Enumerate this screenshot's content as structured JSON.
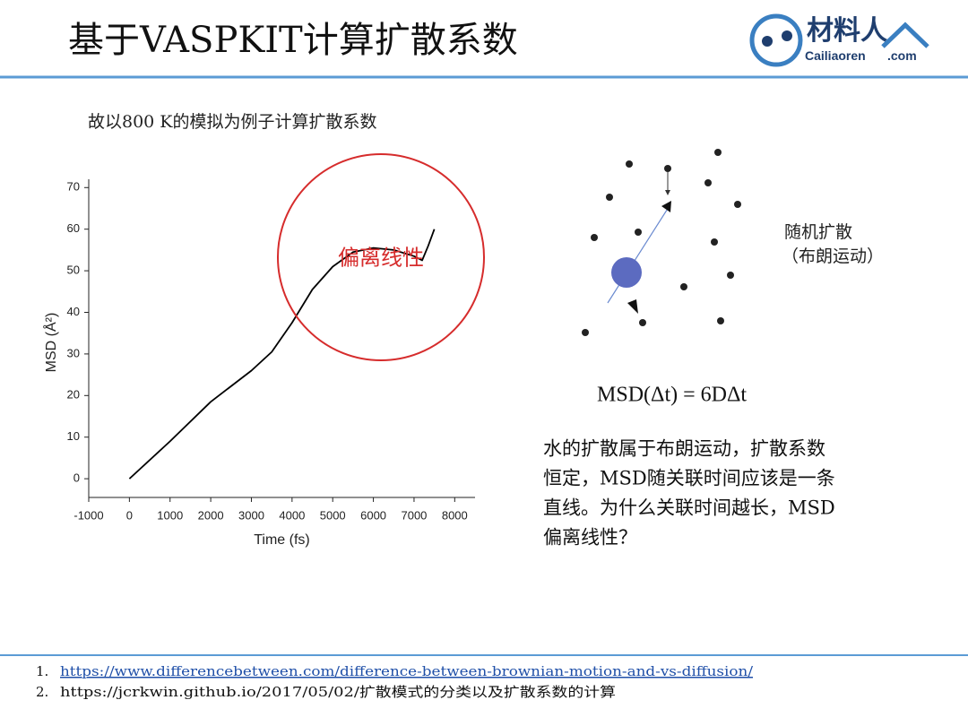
{
  "header": {
    "title": "基于VASPKIT计算扩散系数",
    "logo": {
      "name": "材料人",
      "site": "Cailiaoren",
      "domain": ".com"
    }
  },
  "subtitle": "故以800 K的模拟为例子计算扩散系数",
  "chart_data": {
    "type": "line",
    "x_label": "Time (fs)",
    "y_label": "MSD (Å²)",
    "x": [
      0,
      1000,
      2000,
      3000,
      3500,
      4000,
      4500,
      5000,
      5500,
      6000,
      6500,
      7000,
      7200,
      7350,
      7500
    ],
    "values": [
      0,
      9,
      18.5,
      26,
      30.5,
      37.5,
      45.5,
      51,
      54.5,
      55.5,
      55,
      53.5,
      52.5,
      56,
      60
    ],
    "color": "#000000",
    "xlim": [
      -1000,
      8500
    ],
    "xticks": [
      -1000,
      0,
      1000,
      2000,
      3000,
      4000,
      5000,
      6000,
      7000,
      8000
    ],
    "ylim": [
      -4.5,
      72
    ],
    "yticks": [
      0,
      10,
      20,
      30,
      40,
      50,
      60,
      70
    ],
    "annotation": "偏离线性"
  },
  "diagram": {
    "label": "随机扩散",
    "sublabel": "（布朗运动）"
  },
  "formula": "MSD(Δt) = 6DΔt",
  "paragraph": [
    "水的扩散属于布朗运动，扩散系数",
    "恒定，MSD随关联时间应该是一条",
    "直线。为什么关联时间越长，MSD",
    "偏离线性？"
  ],
  "references": [
    {
      "number": "1.",
      "text": "https://www.differencebetween.com/difference-between-brownian-motion-and-vs-diffusion/"
    },
    {
      "number": "2.",
      "text": "https://jcrkwin.github.io/2017/05/02/扩散模式的分类以及扩散系数的计算"
    }
  ]
}
